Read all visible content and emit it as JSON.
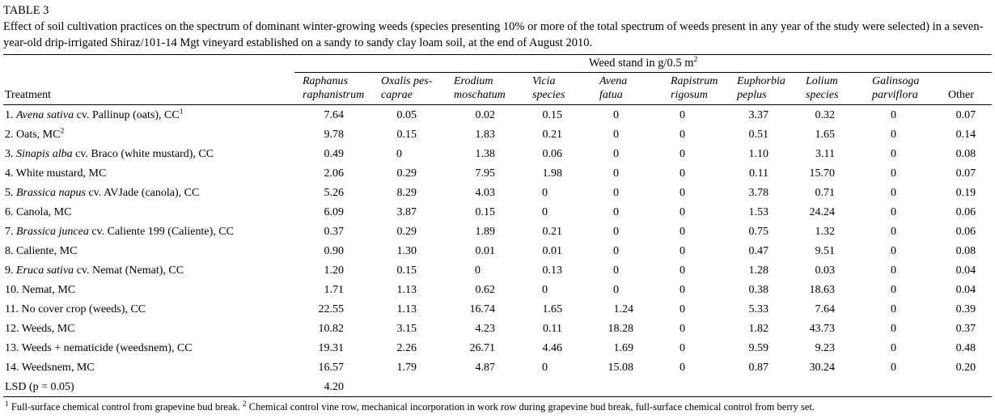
{
  "table_label": "TABLE 3",
  "caption": "Effect of soil cultivation practices on the spectrum of dominant winter-growing weeds (species presenting 10% or more of the total spectrum of weeds present in any year of the study were selected) in a seven-year-old drip-irrigated Shiraz/101-14 Mgt vineyard established on a sandy to sandy clay loam soil, at the end of August 2010.",
  "span_header": {
    "text": "Weed stand in g/0.5 m",
    "sup": "2"
  },
  "treatment_header": "Treatment",
  "columns": [
    {
      "line1": "Raphanus",
      "line2": "raphanistrum",
      "italic": true
    },
    {
      "line1": "Oxalis pes-",
      "line2": "caprae",
      "italic": true
    },
    {
      "line1": "Erodium",
      "line2": "moschatum",
      "italic": true
    },
    {
      "line1": "Vicia",
      "line2": "species",
      "italic": true
    },
    {
      "line1": "Avena",
      "line2": "fatua",
      "italic": true
    },
    {
      "line1": "Rapistrum",
      "line2": "rigosum",
      "italic": true
    },
    {
      "line1": "Euphorbia",
      "line2": "peplus",
      "italic": true
    },
    {
      "line1": "Lolium",
      "line2": "species",
      "italic": true
    },
    {
      "line1": "Galinsoga",
      "line2": "parviflora",
      "italic": true
    },
    {
      "line1": "",
      "line2": "Other",
      "italic": false
    }
  ],
  "rows": [
    {
      "treatment": [
        {
          "t": "1. "
        },
        {
          "t": "Avena sativa",
          "i": true
        },
        {
          "t": " cv. Pallinup (oats), CC"
        },
        {
          "t": "1",
          "s": true
        }
      ],
      "values": [
        "7.64",
        "0.05",
        "0.02",
        "0.15",
        "0",
        "0",
        "3.37",
        "0.32",
        "0",
        "0.07"
      ]
    },
    {
      "treatment": [
        {
          "t": "2. Oats, MC"
        },
        {
          "t": "2",
          "s": true
        }
      ],
      "values": [
        "9.78",
        "0.15",
        "1.83",
        "0.21",
        "0",
        "0",
        "0.51",
        "1.65",
        "0",
        "0.14"
      ]
    },
    {
      "treatment": [
        {
          "t": "3. "
        },
        {
          "t": "Sinapis alba",
          "i": true
        },
        {
          "t": " cv. Braco (white mustard), CC"
        }
      ],
      "values": [
        "0.49",
        "0",
        "1.38",
        "0.06",
        "0",
        "0",
        "1.10",
        "3.11",
        "0",
        "0.08"
      ]
    },
    {
      "treatment": [
        {
          "t": "4. White mustard, MC"
        }
      ],
      "values": [
        "2.06",
        "0.29",
        "7.95",
        "1.98",
        "0",
        "0",
        "0.11",
        "15.70",
        "0",
        "0.07"
      ]
    },
    {
      "treatment": [
        {
          "t": "5. "
        },
        {
          "t": "Brassica napus",
          "i": true
        },
        {
          "t": " cv. AVJade (canola), CC"
        }
      ],
      "values": [
        "5.26",
        "8.29",
        "4.03",
        "0",
        "0",
        "0",
        "3.78",
        "0.71",
        "0",
        "0.19"
      ]
    },
    {
      "treatment": [
        {
          "t": "6. Canola, MC"
        }
      ],
      "values": [
        "6.09",
        "3.87",
        "0.15",
        "0",
        "0",
        "0",
        "1.53",
        "24.24",
        "0",
        "0.06"
      ]
    },
    {
      "treatment": [
        {
          "t": "7. "
        },
        {
          "t": "Brassica juncea",
          "i": true
        },
        {
          "t": " cv. Caliente 199 (Caliente), CC"
        }
      ],
      "values": [
        "0.37",
        "0.29",
        "1.89",
        "0.21",
        "0",
        "0",
        "0.75",
        "1.32",
        "0",
        "0.06"
      ]
    },
    {
      "treatment": [
        {
          "t": "8. Caliente, MC"
        }
      ],
      "values": [
        "0.90",
        "1.30",
        "0.01",
        "0.01",
        "0",
        "0",
        "0.47",
        "9.51",
        "0",
        "0.08"
      ]
    },
    {
      "treatment": [
        {
          "t": "9. "
        },
        {
          "t": "Eruca sativa",
          "i": true
        },
        {
          "t": " cv. Nemat (Nemat), CC"
        }
      ],
      "values": [
        "1.20",
        "0.15",
        "0",
        "0.13",
        "0",
        "0",
        "1.28",
        "0.03",
        "0",
        "0.04"
      ]
    },
    {
      "treatment": [
        {
          "t": "10. Nemat, MC"
        }
      ],
      "values": [
        "1.71",
        "1.13",
        "0.62",
        "0",
        "0",
        "0",
        "0.38",
        "18.63",
        "0",
        "0.04"
      ]
    },
    {
      "treatment": [
        {
          "t": "11. No cover crop (weeds), CC"
        }
      ],
      "values": [
        "22.55",
        "1.13",
        "16.74",
        "1.65",
        "1.24",
        "0",
        "5.33",
        "7.64",
        "0",
        "0.39"
      ]
    },
    {
      "treatment": [
        {
          "t": "12. Weeds, MC"
        }
      ],
      "values": [
        "10.82",
        "3.15",
        "4.23",
        "0.11",
        "18.28",
        "0",
        "1.82",
        "43.73",
        "0",
        "0.37"
      ]
    },
    {
      "treatment": [
        {
          "t": "13. Weeds + nematicide (weedsnem), CC"
        }
      ],
      "values": [
        "19.31",
        "2.26",
        "26.71",
        "4.46",
        "1.69",
        "0",
        "9.59",
        "9.23",
        "0",
        "0.48"
      ]
    },
    {
      "treatment": [
        {
          "t": "14. Weedsnem, MC"
        }
      ],
      "values": [
        "16.57",
        "1.79",
        "4.87",
        "0",
        "15.08",
        "0",
        "0.87",
        "30.24",
        "0",
        "0.20"
      ]
    }
  ],
  "lsd_row": {
    "label": "LSD (p = 0.05)",
    "value": "4.20"
  },
  "footnote": [
    {
      "t": "1",
      "s": true
    },
    {
      "t": " Full-surface chemical control from grapevine bud break. "
    },
    {
      "t": "2",
      "s": true
    },
    {
      "t": " Chemical control vine row, mechanical incorporation in work row during grapevine bud break, full-surface chemical control from berry set."
    }
  ],
  "chart_data": {
    "type": "table",
    "title": "TABLE 3",
    "unit": "Weed stand in g/0.5 m2",
    "columns": [
      "Raphanus raphanistrum",
      "Oxalis pes-caprae",
      "Erodium moschatum",
      "Vicia species",
      "Avena fatua",
      "Rapistrum rigosum",
      "Euphorbia peplus",
      "Lolium species",
      "Galinsoga parviflora",
      "Other"
    ],
    "treatments": [
      "1. Avena sativa cv. Pallinup (oats), CC",
      "2. Oats, MC",
      "3. Sinapis alba cv. Braco (white mustard), CC",
      "4. White mustard, MC",
      "5. Brassica napus cv. AVJade (canola), CC",
      "6. Canola, MC",
      "7. Brassica juncea cv. Caliente 199 (Caliente), CC",
      "8. Caliente, MC",
      "9. Eruca sativa cv. Nemat (Nemat), CC",
      "10. Nemat, MC",
      "11. No cover crop (weeds), CC",
      "12. Weeds, MC",
      "13. Weeds + nematicide (weedsnem), CC",
      "14. Weedsnem, MC",
      "LSD (p = 0.05)"
    ],
    "values": [
      [
        7.64,
        0.05,
        0.02,
        0.15,
        0,
        0,
        3.37,
        0.32,
        0,
        0.07
      ],
      [
        9.78,
        0.15,
        1.83,
        0.21,
        0,
        0,
        0.51,
        1.65,
        0,
        0.14
      ],
      [
        0.49,
        0,
        1.38,
        0.06,
        0,
        0,
        1.1,
        3.11,
        0,
        0.08
      ],
      [
        2.06,
        0.29,
        7.95,
        1.98,
        0,
        0,
        0.11,
        15.7,
        0,
        0.07
      ],
      [
        5.26,
        8.29,
        4.03,
        0,
        0,
        0,
        3.78,
        0.71,
        0,
        0.19
      ],
      [
        6.09,
        3.87,
        0.15,
        0,
        0,
        0,
        1.53,
        24.24,
        0,
        0.06
      ],
      [
        0.37,
        0.29,
        1.89,
        0.21,
        0,
        0,
        0.75,
        1.32,
        0,
        0.06
      ],
      [
        0.9,
        1.3,
        0.01,
        0.01,
        0,
        0,
        0.47,
        9.51,
        0,
        0.08
      ],
      [
        1.2,
        0.15,
        0,
        0.13,
        0,
        0,
        1.28,
        0.03,
        0,
        0.04
      ],
      [
        1.71,
        1.13,
        0.62,
        0,
        0,
        0,
        0.38,
        18.63,
        0,
        0.04
      ],
      [
        22.55,
        1.13,
        16.74,
        1.65,
        1.24,
        0,
        5.33,
        7.64,
        0,
        0.39
      ],
      [
        10.82,
        3.15,
        4.23,
        0.11,
        18.28,
        0,
        1.82,
        43.73,
        0,
        0.37
      ],
      [
        19.31,
        2.26,
        26.71,
        4.46,
        1.69,
        0,
        9.59,
        9.23,
        0,
        0.48
      ],
      [
        16.57,
        1.79,
        4.87,
        0,
        15.08,
        0,
        0.87,
        30.24,
        0,
        0.2
      ],
      [
        4.2,
        null,
        null,
        null,
        null,
        null,
        null,
        null,
        null,
        null
      ]
    ]
  }
}
